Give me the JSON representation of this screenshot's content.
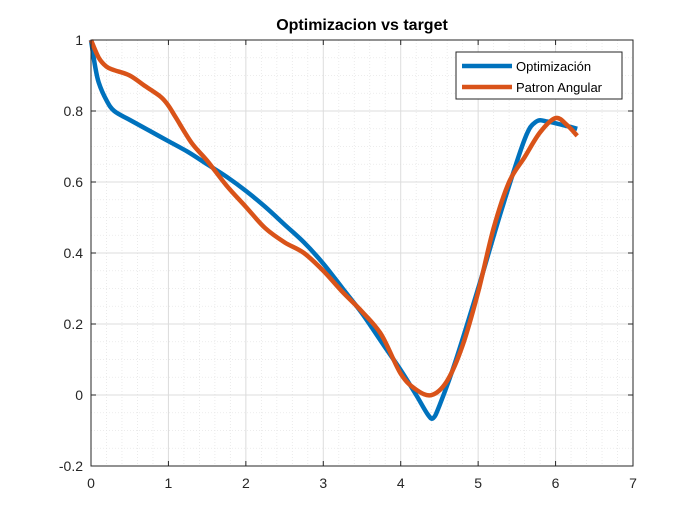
{
  "chart_data": {
    "type": "line",
    "title": "Optimizacion vs target",
    "xlabel": "",
    "ylabel": "",
    "xlim": [
      0,
      7
    ],
    "ylim": [
      -0.2,
      1
    ],
    "xticks": [
      0,
      1,
      2,
      3,
      4,
      5,
      6,
      7
    ],
    "yticks": [
      -0.2,
      0,
      0.2,
      0.4,
      0.6,
      0.8,
      1
    ],
    "xtick_labels": [
      "0",
      "1",
      "2",
      "3",
      "4",
      "5",
      "6",
      "7"
    ],
    "ytick_labels": [
      "-0.2",
      "0",
      "0.2",
      "0.4",
      "0.6",
      "0.8",
      "1"
    ],
    "grid": true,
    "minor_grid": true,
    "legend_position": "top-right",
    "series": [
      {
        "name": "Optimización",
        "color": "#0072BD",
        "x": [
          0,
          0.05,
          0.1,
          0.2,
          0.3,
          0.5,
          0.75,
          1.0,
          1.25,
          1.5,
          1.75,
          2.0,
          2.25,
          2.5,
          2.75,
          3.0,
          3.25,
          3.5,
          3.75,
          4.0,
          4.2,
          4.35,
          4.42,
          4.5,
          4.7,
          5.0,
          5.3,
          5.6,
          5.75,
          5.9,
          6.1,
          6.28
        ],
        "y": [
          1.0,
          0.93,
          0.88,
          0.83,
          0.8,
          0.775,
          0.745,
          0.715,
          0.685,
          0.65,
          0.615,
          0.575,
          0.53,
          0.48,
          0.43,
          0.37,
          0.3,
          0.23,
          0.15,
          0.07,
          0.0,
          -0.055,
          -0.065,
          -0.03,
          0.09,
          0.3,
          0.52,
          0.72,
          0.77,
          0.77,
          0.76,
          0.75
        ]
      },
      {
        "name": "Patron Angular",
        "color": "#D95319",
        "x": [
          0,
          0.1,
          0.2,
          0.3,
          0.5,
          0.7,
          0.9,
          1.0,
          1.1,
          1.3,
          1.5,
          1.75,
          2.0,
          2.25,
          2.5,
          2.75,
          3.0,
          3.25,
          3.5,
          3.75,
          4.0,
          4.2,
          4.4,
          4.6,
          4.8,
          5.0,
          5.2,
          5.4,
          5.6,
          5.8,
          6.0,
          6.15,
          6.28
        ],
        "y": [
          1.0,
          0.95,
          0.925,
          0.915,
          0.9,
          0.87,
          0.84,
          0.815,
          0.78,
          0.71,
          0.66,
          0.59,
          0.53,
          0.47,
          0.43,
          0.4,
          0.35,
          0.29,
          0.235,
          0.17,
          0.06,
          0.015,
          0.0,
          0.04,
          0.14,
          0.29,
          0.47,
          0.6,
          0.67,
          0.74,
          0.78,
          0.76,
          0.73
        ]
      }
    ]
  }
}
